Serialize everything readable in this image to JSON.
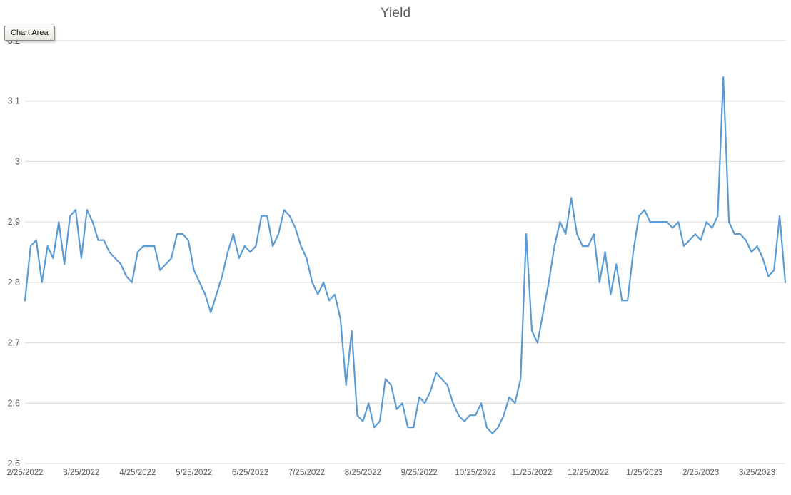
{
  "tooltip": {
    "label": "Chart Area"
  },
  "chart_data": {
    "type": "line",
    "title": "Yield",
    "xlabel": "",
    "ylabel": "",
    "legend": "none",
    "grid": "horizontal",
    "series_name": "Yield",
    "series_color": "#5B9BD5",
    "grid_color": "#D9D9D9",
    "label_color": "#595959",
    "ylim": [
      2.5,
      3.2
    ],
    "y_ticks": [
      "2.5",
      "2.6",
      "2.7",
      "2.8",
      "2.9",
      "3",
      "3.1",
      "3.2"
    ],
    "x_tick_labels": [
      "2/25/2022",
      "3/25/2022",
      "4/25/2022",
      "5/25/2022",
      "6/25/2022",
      "7/25/2022",
      "8/25/2022",
      "9/25/2022",
      "10/25/2022",
      "11/25/2022",
      "12/25/2022",
      "1/25/2023",
      "2/25/2023",
      "3/25/2023"
    ],
    "x_tick_indices": [
      0,
      10,
      20,
      30,
      40,
      50,
      60,
      70,
      80,
      90,
      100,
      110,
      120,
      130
    ],
    "values": [
      2.77,
      2.86,
      2.87,
      2.8,
      2.86,
      2.84,
      2.9,
      2.83,
      2.91,
      2.92,
      2.84,
      2.92,
      2.9,
      2.87,
      2.87,
      2.85,
      2.84,
      2.83,
      2.81,
      2.8,
      2.85,
      2.86,
      2.86,
      2.86,
      2.82,
      2.83,
      2.84,
      2.88,
      2.88,
      2.87,
      2.82,
      2.8,
      2.78,
      2.75,
      2.78,
      2.81,
      2.85,
      2.88,
      2.84,
      2.86,
      2.85,
      2.86,
      2.91,
      2.91,
      2.86,
      2.88,
      2.92,
      2.91,
      2.89,
      2.86,
      2.84,
      2.8,
      2.78,
      2.8,
      2.77,
      2.78,
      2.74,
      2.63,
      2.72,
      2.58,
      2.57,
      2.6,
      2.56,
      2.57,
      2.64,
      2.63,
      2.59,
      2.6,
      2.56,
      2.56,
      2.61,
      2.6,
      2.62,
      2.65,
      2.64,
      2.63,
      2.6,
      2.58,
      2.57,
      2.58,
      2.58,
      2.6,
      2.56,
      2.55,
      2.56,
      2.58,
      2.61,
      2.6,
      2.64,
      2.88,
      2.72,
      2.7,
      2.75,
      2.8,
      2.86,
      2.9,
      2.88,
      2.94,
      2.88,
      2.86,
      2.86,
      2.88,
      2.8,
      2.85,
      2.78,
      2.83,
      2.77,
      2.77,
      2.85,
      2.91,
      2.92,
      2.9,
      2.9,
      2.9,
      2.9,
      2.89,
      2.9,
      2.86,
      2.87,
      2.88,
      2.87,
      2.9,
      2.89,
      2.91,
      3.14,
      2.9,
      2.88,
      2.88,
      2.87,
      2.85,
      2.86,
      2.84,
      2.81,
      2.82,
      2.91,
      2.8
    ]
  }
}
